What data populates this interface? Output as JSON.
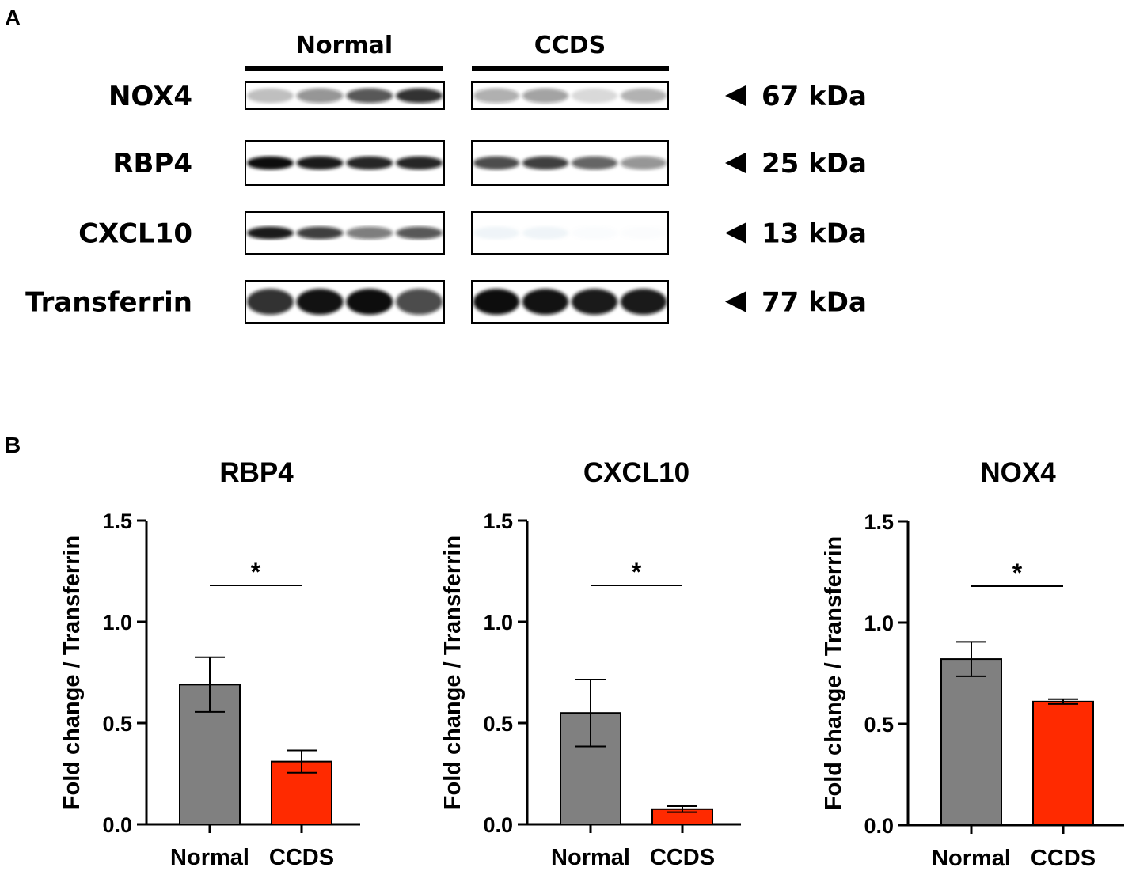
{
  "panels": {
    "a_label": "A",
    "b_label": "B"
  },
  "blot": {
    "groups": [
      "Normal",
      "CCDS"
    ],
    "proteins": [
      {
        "name": "NOX4",
        "mw": "67 kDa",
        "normal_bands": [
          0.25,
          0.45,
          0.7,
          0.85
        ],
        "ccds_bands": [
          0.35,
          0.4,
          0.15,
          0.3
        ]
      },
      {
        "name": "RBP4",
        "mw": "25 kDa",
        "normal_bands": [
          1.0,
          0.95,
          0.9,
          0.9
        ],
        "ccds_bands": [
          0.75,
          0.8,
          0.65,
          0.45
        ]
      },
      {
        "name": "CXCL10",
        "mw": "13 kDa",
        "normal_bands": [
          0.95,
          0.8,
          0.55,
          0.7
        ],
        "ccds_bands": [
          0.12,
          0.12,
          0.04,
          0.03
        ]
      },
      {
        "name": "Transferrin",
        "mw": "77 kDa",
        "normal_bands": [
          0.85,
          0.98,
          1.0,
          0.75
        ],
        "ccds_bands": [
          1.0,
          0.98,
          0.95,
          0.95
        ]
      }
    ],
    "band_color": "#111111"
  },
  "chart_data": [
    {
      "type": "bar",
      "title": "RBP4",
      "ylabel": "Fold change / Transferrin",
      "xlabel": "",
      "categories": [
        "Normal",
        "CCDS"
      ],
      "values": [
        0.69,
        0.31
      ],
      "errors": [
        0.135,
        0.055
      ],
      "colors": [
        "#808080",
        "#ff2a00"
      ],
      "ylim": [
        0,
        1.5
      ],
      "yticks": [
        "0.0",
        "0.5",
        "1.0",
        "1.5"
      ],
      "significance": "*",
      "grid": false
    },
    {
      "type": "bar",
      "title": "CXCL10",
      "ylabel": "Fold change / Transferrin",
      "xlabel": "",
      "categories": [
        "Normal",
        "CCDS"
      ],
      "values": [
        0.55,
        0.075
      ],
      "errors": [
        0.165,
        0.015
      ],
      "colors": [
        "#808080",
        "#ff2a00"
      ],
      "ylim": [
        0,
        1.5
      ],
      "yticks": [
        "0.0",
        "0.5",
        "1.0",
        "1.5"
      ],
      "significance": "*",
      "grid": false
    },
    {
      "type": "bar",
      "title": "NOX4",
      "ylabel": "Fold change / Transferrin",
      "xlabel": "",
      "categories": [
        "Normal",
        "CCDS"
      ],
      "values": [
        0.82,
        0.61
      ],
      "errors": [
        0.085,
        0.012
      ],
      "colors": [
        "#808080",
        "#ff2a00"
      ],
      "ylim": [
        0,
        1.5
      ],
      "yticks": [
        "0.0",
        "0.5",
        "1.0",
        "1.5"
      ],
      "significance": "*",
      "grid": false
    }
  ]
}
